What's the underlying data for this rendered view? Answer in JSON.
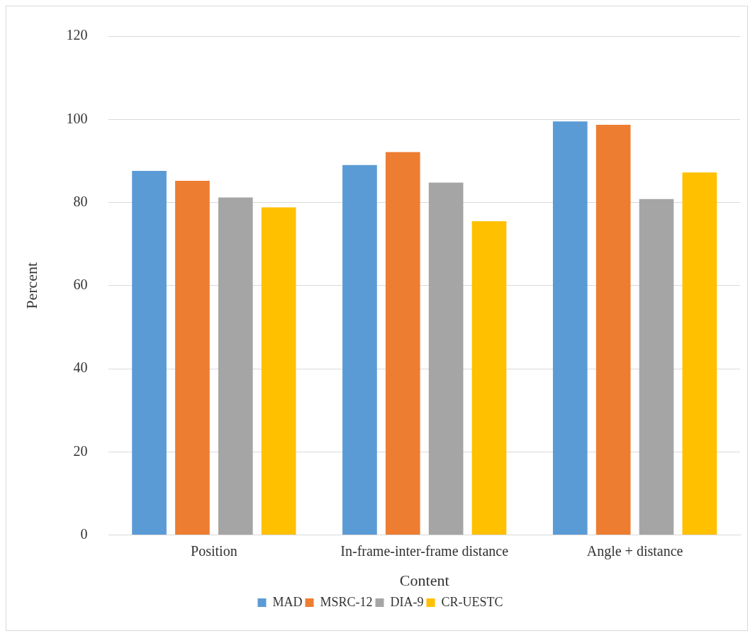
{
  "chart_data": {
    "type": "bar",
    "xlabel": "Content",
    "ylabel": "Percent",
    "categories": [
      "Position",
      "In-frame-inter-frame distance",
      "Angle + distance"
    ],
    "series": [
      {
        "name": "MAD",
        "color": "#5b9bd5",
        "values": [
          87.6,
          89.0,
          99.5
        ]
      },
      {
        "name": "MSRC-12",
        "color": "#ed7d31",
        "values": [
          85.2,
          92.1,
          98.7
        ]
      },
      {
        "name": "DIA-9",
        "color": "#a5a5a5",
        "values": [
          81.2,
          84.8,
          80.8
        ]
      },
      {
        "name": "CR-UESTC",
        "color": "#ffc000",
        "values": [
          78.8,
          75.5,
          87.2
        ]
      }
    ],
    "ylim": [
      0,
      120
    ],
    "yticks": [
      0,
      20,
      40,
      60,
      80,
      100,
      120
    ],
    "grid": "y",
    "legend": "bottom"
  }
}
